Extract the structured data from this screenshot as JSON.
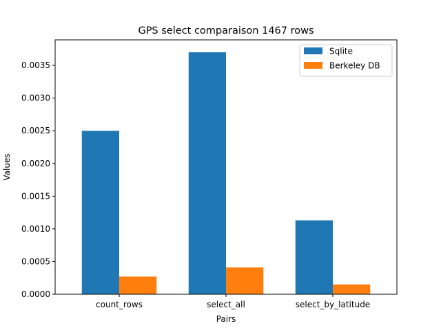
{
  "chart_data": {
    "type": "bar",
    "title": "GPS select comparaison 1467 rows",
    "xlabel": "Pairs",
    "ylabel": "Values",
    "categories": [
      "count_rows",
      "select_all",
      "select_by_latitude"
    ],
    "series": [
      {
        "name": "Sqlite",
        "color": "#1f77b4",
        "values": [
          0.0025,
          0.0037,
          0.00113
        ]
      },
      {
        "name": "Berkeley DB",
        "color": "#ff7f0e",
        "values": [
          0.00027,
          0.00041,
          0.00015
        ]
      }
    ],
    "ylim": [
      0,
      0.00389
    ],
    "yticks": [
      0,
      0.0005,
      0.001,
      0.0015,
      0.002,
      0.0025,
      0.003,
      0.0035
    ],
    "ytick_labels": [
      "0.0000",
      "0.0005",
      "0.0010",
      "0.0015",
      "0.0020",
      "0.0025",
      "0.0030",
      "0.0035"
    ],
    "legend_position": "top-right",
    "grid": false
  }
}
